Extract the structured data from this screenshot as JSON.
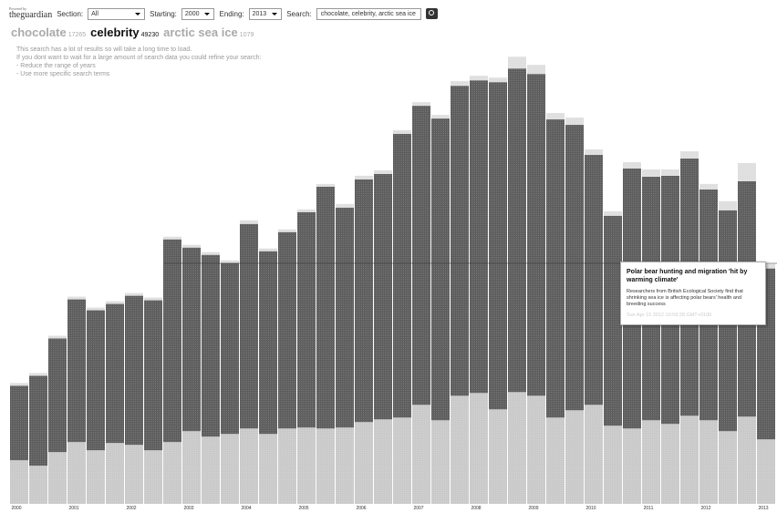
{
  "header": {
    "logo_small": "Powered by",
    "logo": "theguardian",
    "section_label": "Section:",
    "section_value": "All",
    "start_label": "Starting:",
    "start_value": "2000",
    "end_label": "Ending:",
    "end_value": "2013",
    "search_label": "Search:",
    "search_value": "chocolate, celebrity, arctic sea ice"
  },
  "notice": {
    "lines": [
      "This search has a lot of results so will take a long time to load.",
      "If you dont want to wait for a large amount of search data you could refine your search:",
      "- Reduce the range of years",
      "- Use more specific search terms"
    ]
  },
  "tooltip": {
    "title": "Polar bear hunting and migration 'hit by warming climate'",
    "text": "Researchers from British Ecological Society find that shrinking sea ice is affecting polar bears' health and breeding success",
    "date": "Sun Apr 15 2012 10:59:28 GMT+0100"
  },
  "chart_data": {
    "type": "stacked-bar",
    "selected": "celebrity",
    "ylim": [
      0,
      3600
    ],
    "categories": [
      "2000",
      null,
      null,
      "2001",
      null,
      null,
      "2002",
      null,
      null,
      "2003",
      null,
      null,
      "2004",
      null,
      null,
      "2005",
      null,
      null,
      "2006",
      null,
      null,
      "2007",
      null,
      null,
      "2008",
      null,
      null,
      "2009",
      null,
      null,
      "2010",
      null,
      null,
      "2011",
      null,
      null,
      "2012",
      null,
      null,
      "2013"
    ],
    "series": [
      {
        "name": "chocolate",
        "total": 17265,
        "color": "#c9c9c9",
        "values": [
          336,
          294,
          399,
          476,
          413,
          469,
          455,
          413,
          476,
          560,
          518,
          539,
          581,
          539,
          581,
          588,
          581,
          588,
          630,
          651,
          665,
          763,
          644,
          833,
          854,
          728,
          861,
          833,
          665,
          721,
          763,
          602,
          581,
          644,
          616,
          679,
          644,
          560,
          672,
          497
        ]
      },
      {
        "name": "celebrity",
        "total": 49230,
        "color": "#5c5c5c",
        "values": [
          574,
          693,
          875,
          1099,
          1078,
          1071,
          1148,
          1155,
          1561,
          1414,
          1400,
          1316,
          1575,
          1407,
          1512,
          1659,
          1862,
          1694,
          1869,
          1890,
          2184,
          2303,
          2324,
          2387,
          2408,
          2520,
          2492,
          2478,
          2296,
          2198,
          1925,
          1617,
          2002,
          1876,
          1911,
          1981,
          1778,
          1701,
          1813,
          1316
        ]
      },
      {
        "name": "arctic sea ice",
        "total": 1079,
        "color": "#dedede",
        "values": [
          21,
          21,
          21,
          21,
          21,
          21,
          21,
          21,
          21,
          21,
          21,
          21,
          28,
          21,
          21,
          21,
          21,
          28,
          28,
          28,
          28,
          28,
          28,
          35,
          35,
          35,
          91,
          70,
          49,
          56,
          42,
          35,
          49,
          56,
          49,
          56,
          42,
          70,
          140,
          35
        ]
      }
    ]
  }
}
